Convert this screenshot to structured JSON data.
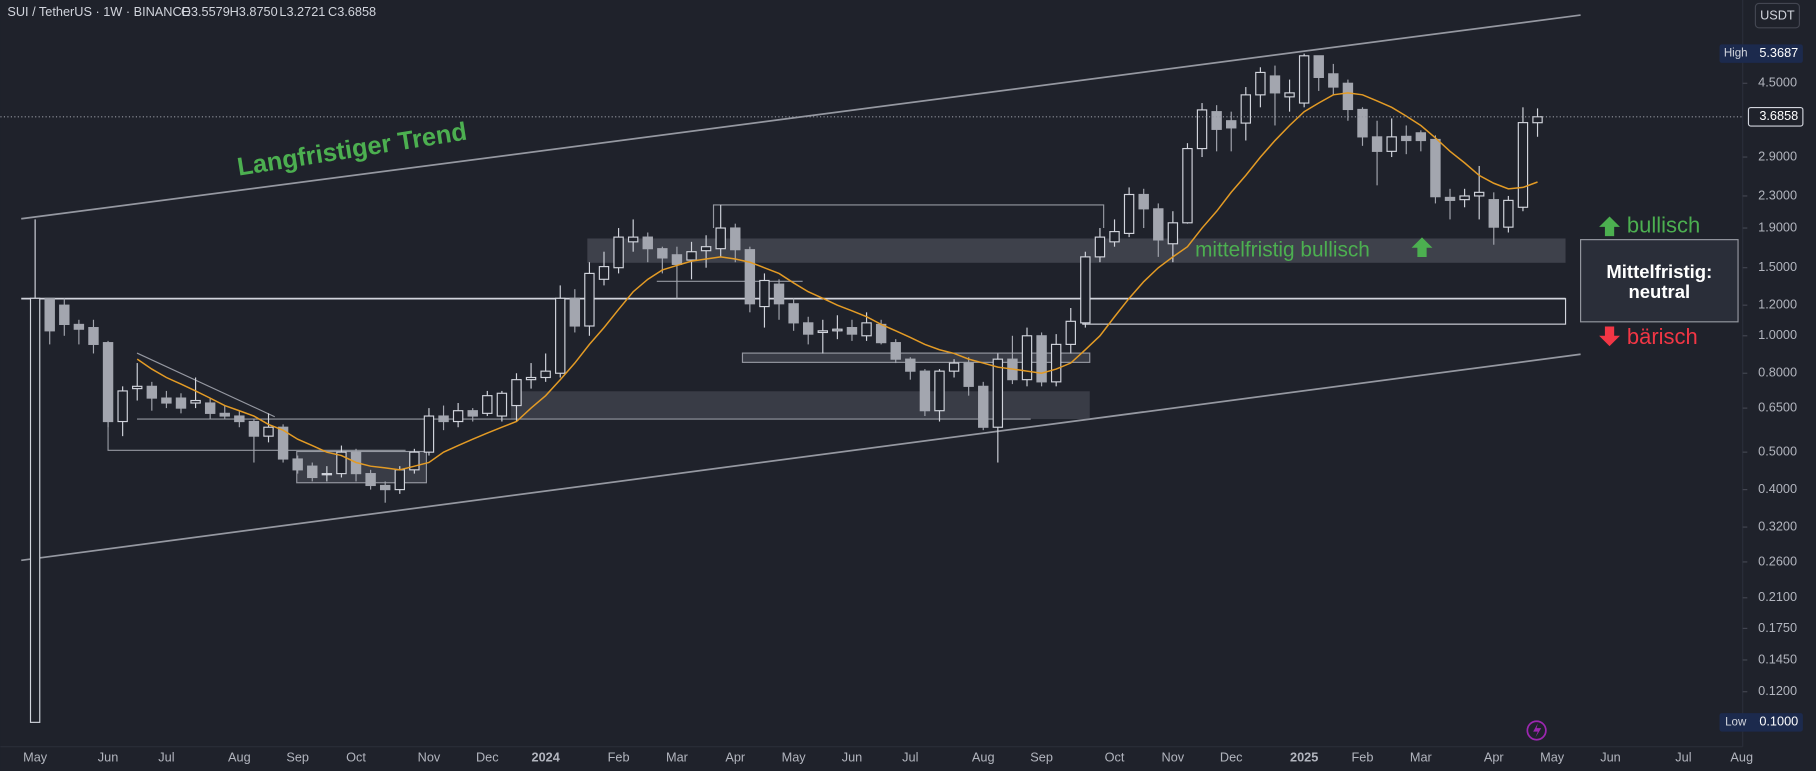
{
  "header": {
    "symbol": "SUI / TetherUS · 1W · BINANCE",
    "ohlc": [
      "O3.5579",
      "H3.8750",
      "L3.2721",
      "C3.6858"
    ]
  },
  "currency_button": "USDT",
  "chart_data": {
    "type": "candlestick",
    "categories": [
      "May",
      null,
      null,
      null,
      null,
      "Jun",
      null,
      null,
      null,
      "Jul",
      null,
      null,
      null,
      null,
      "Aug",
      null,
      null,
      null,
      "Sep",
      null,
      null,
      null,
      "Oct",
      null,
      null,
      null,
      null,
      "Nov",
      null,
      null,
      null,
      "Dec",
      null,
      null,
      null,
      "2024",
      null,
      null,
      null,
      null,
      "Feb",
      null,
      null,
      null,
      "Mar",
      null,
      null,
      null,
      "Apr",
      null,
      null,
      null,
      "May",
      null,
      null,
      null,
      "Jun",
      null,
      null,
      null,
      "Jul",
      null,
      null,
      null,
      null,
      "Aug",
      null,
      null,
      null,
      "Sep",
      null,
      null,
      null,
      null,
      "Oct",
      null,
      null,
      null,
      "Nov",
      null,
      null,
      null,
      "Dec",
      null,
      null,
      null,
      null,
      "2025",
      null,
      null,
      null,
      "Feb",
      null,
      null,
      null,
      "Mar",
      null,
      null,
      null,
      null,
      "Apr",
      null,
      null,
      null,
      "May",
      null,
      null,
      null,
      "Jun",
      null,
      null,
      null,
      null,
      "Jul",
      null,
      null,
      null,
      "Aug"
    ],
    "open": [
      0.1,
      1.25,
      1.2,
      1.07,
      1.05,
      0.96,
      0.6,
      0.73,
      0.74,
      0.69,
      0.69,
      0.67,
      0.67,
      0.63,
      0.62,
      0.6,
      0.55,
      0.58,
      0.48,
      0.46,
      0.44,
      0.44,
      0.5,
      0.44,
      0.41,
      0.4,
      0.45,
      0.5,
      0.62,
      0.6,
      0.64,
      0.63,
      0.62,
      0.66,
      0.77,
      0.78,
      0.8,
      1.25,
      1.06,
      1.4,
      1.5,
      1.75,
      1.8,
      1.68,
      1.62,
      1.57,
      1.66,
      1.68,
      1.9,
      1.67,
      1.19,
      1.36,
      1.21,
      1.08,
      1.02,
      1.03,
      1.05,
      1.0,
      1.07,
      0.96,
      0.87,
      0.81,
      0.64,
      0.81,
      0.85,
      0.74,
      0.58,
      0.87,
      0.77,
      1.0,
      0.76,
      0.95,
      1.08,
      1.6,
      1.75,
      1.84,
      2.32,
      2.13,
      1.73,
      1.96,
      3.05,
      3.8,
      3.6,
      3.55,
      4.2,
      4.7,
      4.15,
      4.0,
      5.3,
      4.76,
      4.5,
      3.85,
      3.27,
      3.0,
      3.28,
      3.35,
      3.22,
      2.28,
      2.25,
      2.3,
      2.25,
      1.91,
      2.15,
      3.5579,
      null,
      null,
      null,
      null,
      null,
      null,
      null,
      null,
      null,
      null,
      null,
      null,
      null,
      null
    ],
    "high": [
      2.0,
      1.25,
      1.25,
      1.1,
      1.1,
      0.97,
      0.74,
      0.85,
      0.76,
      0.72,
      0.71,
      0.78,
      0.69,
      0.66,
      0.64,
      0.61,
      0.63,
      0.59,
      0.49,
      0.47,
      0.46,
      0.52,
      0.51,
      0.45,
      0.42,
      0.46,
      0.51,
      0.65,
      0.66,
      0.67,
      0.65,
      0.72,
      0.72,
      0.8,
      0.85,
      0.9,
      1.35,
      1.32,
      1.55,
      1.65,
      1.9,
      2.0,
      1.85,
      1.7,
      1.7,
      1.75,
      1.82,
      2.18,
      1.95,
      1.7,
      1.45,
      1.4,
      1.25,
      1.12,
      1.1,
      1.13,
      1.1,
      1.15,
      1.1,
      0.98,
      0.88,
      0.82,
      0.82,
      0.87,
      0.88,
      0.76,
      0.9,
      1.0,
      1.05,
      1.02,
      1.01,
      1.18,
      1.65,
      1.9,
      2.0,
      2.42,
      2.4,
      2.2,
      2.1,
      3.15,
      4.0,
      3.95,
      3.8,
      4.4,
      4.95,
      5.0,
      4.6,
      5.3687,
      5.3,
      5.05,
      4.6,
      3.9,
      3.6,
      3.65,
      3.5,
      3.4,
      3.3,
      2.4,
      2.4,
      2.75,
      2.35,
      2.3,
      3.9,
      3.875,
      null,
      null,
      null,
      null,
      null,
      null,
      null,
      null,
      null,
      null,
      null,
      null,
      null,
      null
    ],
    "low": [
      0.1,
      0.95,
      1.0,
      0.95,
      0.9,
      0.58,
      0.55,
      0.68,
      0.64,
      0.65,
      0.63,
      0.65,
      0.61,
      0.61,
      0.58,
      0.47,
      0.53,
      0.47,
      0.44,
      0.42,
      0.42,
      0.43,
      0.42,
      0.4,
      0.37,
      0.39,
      0.44,
      0.49,
      0.57,
      0.58,
      0.6,
      0.62,
      0.6,
      0.6,
      0.73,
      0.76,
      0.78,
      1.02,
      1.0,
      1.35,
      1.45,
      1.65,
      1.55,
      1.45,
      1.25,
      1.4,
      1.5,
      1.6,
      1.55,
      1.15,
      1.05,
      1.1,
      1.03,
      0.95,
      0.9,
      0.98,
      0.97,
      0.97,
      0.95,
      0.85,
      0.77,
      0.62,
      0.6,
      0.78,
      0.7,
      0.57,
      0.47,
      0.75,
      0.74,
      0.74,
      0.74,
      0.9,
      1.05,
      1.55,
      1.7,
      1.8,
      1.9,
      1.6,
      1.55,
      1.95,
      2.9,
      3.0,
      3.0,
      3.2,
      3.9,
      3.5,
      3.8,
      3.9,
      4.3,
      4.2,
      3.6,
      3.1,
      2.45,
      2.9,
      2.95,
      3.0,
      2.2,
      2.0,
      2.15,
      2.0,
      1.72,
      1.85,
      2.1,
      3.2721,
      null,
      null,
      null,
      null,
      null,
      null,
      null,
      null,
      null,
      null,
      null,
      null,
      null,
      null
    ],
    "close": [
      1.25,
      1.03,
      1.07,
      1.04,
      0.95,
      0.6,
      0.72,
      0.74,
      0.69,
      0.67,
      0.65,
      0.68,
      0.63,
      0.62,
      0.6,
      0.55,
      0.58,
      0.48,
      0.45,
      0.43,
      0.44,
      0.5,
      0.44,
      0.41,
      0.4,
      0.45,
      0.5,
      0.62,
      0.6,
      0.64,
      0.62,
      0.7,
      0.71,
      0.77,
      0.78,
      0.81,
      1.25,
      1.06,
      1.45,
      1.51,
      1.8,
      1.8,
      1.68,
      1.59,
      1.53,
      1.65,
      1.7,
      1.9,
      1.67,
      1.21,
      1.39,
      1.21,
      1.08,
      1.01,
      1.03,
      1.04,
      1.01,
      1.08,
      0.96,
      0.87,
      0.81,
      0.64,
      0.81,
      0.85,
      0.74,
      0.58,
      0.87,
      0.77,
      1.0,
      0.76,
      0.95,
      1.09,
      1.6,
      1.8,
      1.86,
      2.32,
      2.13,
      1.77,
      1.96,
      3.05,
      3.84,
      3.42,
      3.45,
      4.2,
      4.8,
      4.25,
      4.25,
      5.3,
      4.66,
      4.4,
      3.85,
      3.27,
      3.0,
      3.27,
      3.2,
      3.2,
      2.29,
      2.24,
      2.3,
      2.35,
      1.91,
      2.24,
      3.56,
      3.6858,
      null,
      null,
      null,
      null,
      null,
      null,
      null,
      null,
      null,
      null,
      null,
      null,
      null,
      null
    ],
    "up_color": "#d1d4dc",
    "down_color": "#a3a6af",
    "ma": {
      "color": "#e39b25",
      "values": [
        null,
        null,
        null,
        null,
        null,
        null,
        null,
        0.87,
        0.82,
        0.78,
        0.75,
        0.72,
        0.69,
        0.66,
        0.64,
        0.62,
        0.59,
        0.57,
        0.54,
        0.52,
        0.5,
        0.49,
        0.47,
        0.46,
        0.455,
        0.45,
        0.46,
        0.47,
        0.5,
        0.52,
        0.54,
        0.56,
        0.58,
        0.6,
        0.65,
        0.7,
        0.77,
        0.85,
        0.95,
        1.05,
        1.17,
        1.3,
        1.4,
        1.48,
        1.52,
        1.56,
        1.58,
        1.6,
        1.58,
        1.55,
        1.5,
        1.45,
        1.37,
        1.3,
        1.25,
        1.2,
        1.16,
        1.12,
        1.07,
        1.03,
        0.99,
        0.95,
        0.92,
        0.9,
        0.87,
        0.85,
        0.83,
        0.82,
        0.81,
        0.8,
        0.82,
        0.85,
        0.92,
        1.0,
        1.12,
        1.25,
        1.38,
        1.5,
        1.6,
        1.7,
        1.9,
        2.1,
        2.35,
        2.6,
        2.9,
        3.2,
        3.5,
        3.8,
        4.0,
        4.2,
        4.25,
        4.2,
        4.05,
        3.9,
        3.7,
        3.5,
        3.25,
        3.0,
        2.8,
        2.6,
        2.48,
        2.4,
        2.42,
        2.5,
        null,
        null,
        null,
        null,
        null,
        null,
        null,
        null,
        null,
        null,
        null,
        null,
        null,
        null
      ]
    },
    "log_scale": true,
    "ylim": [
      0.0865,
      7.39
    ],
    "yticks": [
      {
        "value": 4.5,
        "label": "4.5000"
      },
      {
        "value": 2.9,
        "label": "2.9000"
      },
      {
        "value": 2.3,
        "label": "2.3000"
      },
      {
        "value": 1.9,
        "label": "1.9000"
      },
      {
        "value": 1.5,
        "label": "1.5000"
      },
      {
        "value": 1.2,
        "label": "1.2000"
      },
      {
        "value": 1,
        "label": "1.0000"
      },
      {
        "value": 0.8,
        "label": "0.8000"
      },
      {
        "value": 0.65,
        "label": "0.6500"
      },
      {
        "value": 0.5,
        "label": "0.5000"
      },
      {
        "value": 0.4,
        "label": "0.4000"
      },
      {
        "value": 0.32,
        "label": "0.3200"
      },
      {
        "value": 0.26,
        "label": "0.2600"
      },
      {
        "value": 0.21,
        "label": "0.2100"
      },
      {
        "value": 0.175,
        "label": "0.1750"
      },
      {
        "value": 0.145,
        "label": "0.1450"
      },
      {
        "value": 0.12,
        "label": "0.1200"
      }
    ],
    "grid": false,
    "price_markers": [
      {
        "name": "High",
        "value": 5.3687,
        "value_label": "5.3687"
      },
      {
        "value": 3.6858,
        "value_label": "3.6858"
      },
      {
        "name": "Low",
        "value": 0.1,
        "value_label": "0.1000"
      }
    ],
    "annotations": {
      "trend": "Langfristiger Trend",
      "mid_bullish": "mittelfristig bullisch",
      "bullish": "bullisch",
      "bearish": "bärisch",
      "box": [
        "Mittelfristig:",
        "neutral"
      ]
    }
  }
}
